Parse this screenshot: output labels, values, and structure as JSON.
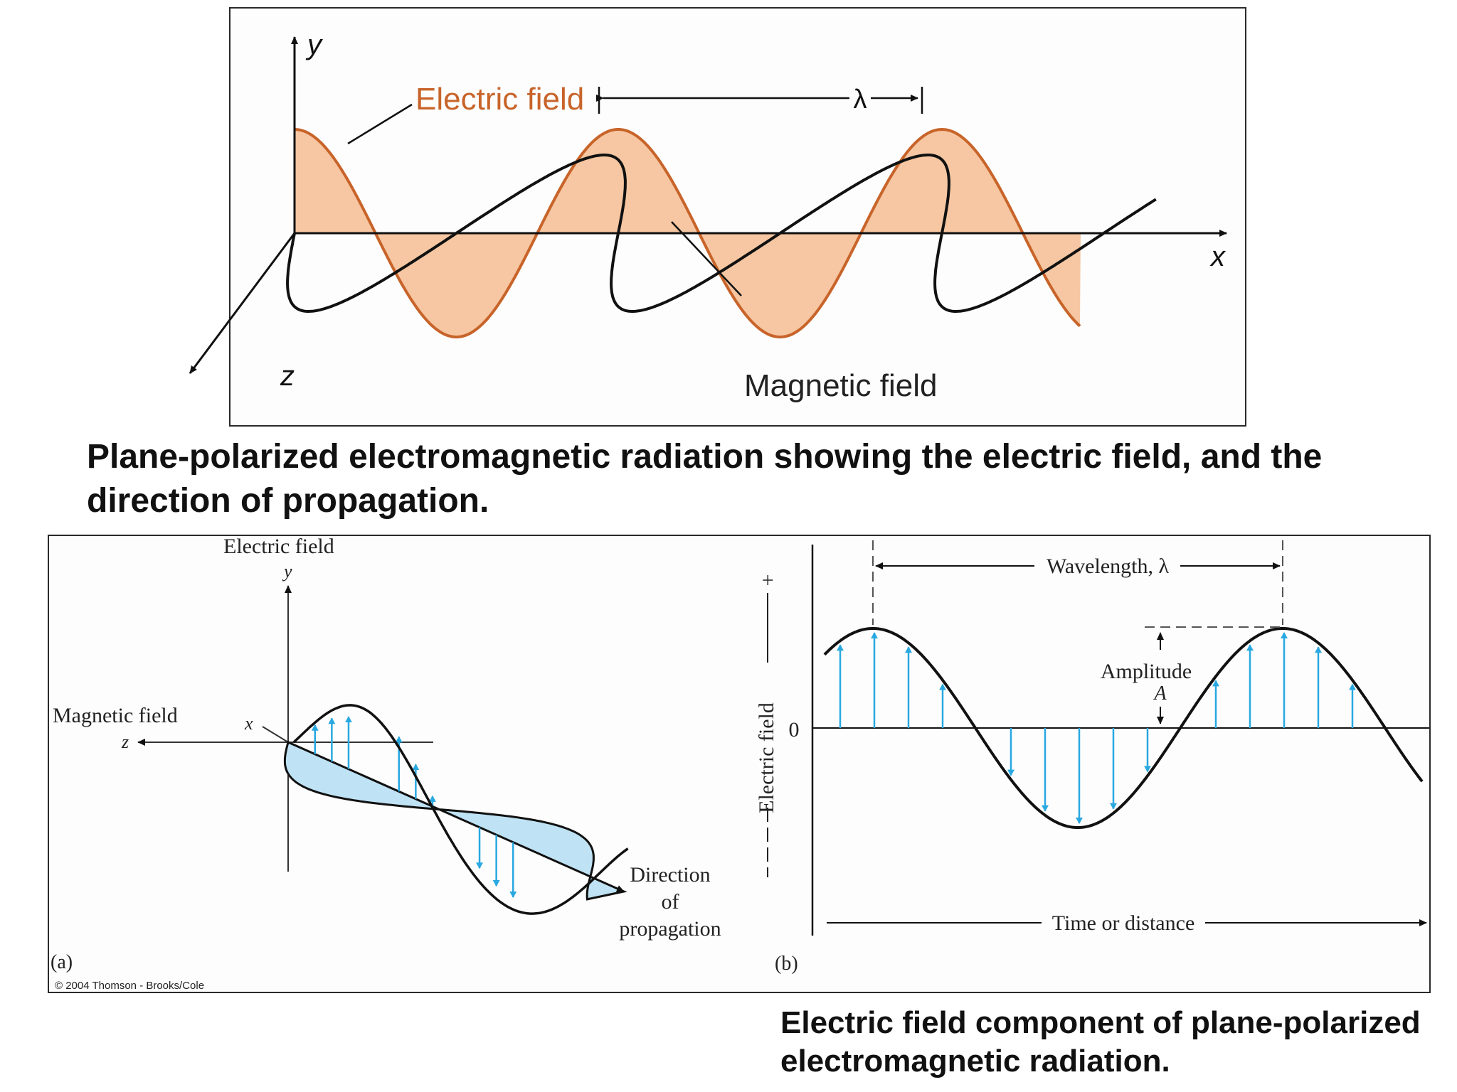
{
  "top_figure": {
    "axis_y": "y",
    "axis_x": "x",
    "axis_z": "z",
    "electric_label": "Electric field",
    "magnetic_label": "Magnetic field",
    "wavelength_symbol": "λ",
    "electric_color": "#c8642a",
    "electric_fill": "#f6c7a2"
  },
  "caption_top": "Plane-polarized electromagnetic radiation showing the electric field, and the direction of propagation.",
  "figure_a": {
    "electric_label": "Electric field",
    "axis_y": "y",
    "magnetic_label": "Magnetic field",
    "axis_x": "x",
    "axis_z": "z",
    "direction_line1": "Direction",
    "direction_line2": "of",
    "direction_line3": "propagation",
    "panel_label": "(a)",
    "copyright": "© 2004 Thomson - Brooks/Cole",
    "arrow_color": "#29a8e0",
    "fill_color": "#bfe3f5"
  },
  "figure_b": {
    "wavelength_label": "Wavelength,  λ",
    "amplitude_label": "Amplitude",
    "amplitude_symbol": "A",
    "y_axis_label": "Electric field",
    "plus_label": "+",
    "zero_label": "0",
    "x_axis_label": "Time or distance",
    "panel_label": "(b)"
  },
  "caption_bottom": "Electric field component of plane-polarized electromagnetic radiation."
}
